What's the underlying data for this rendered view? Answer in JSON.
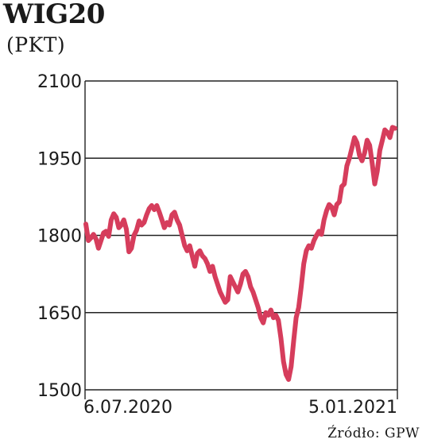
{
  "chart_data": {
    "type": "line",
    "title": "WIG20",
    "subtitle": "(PKT)",
    "ylim": [
      1500,
      2100
    ],
    "yticks": [
      {
        "value": 2100,
        "label": "2100"
      },
      {
        "value": 1950,
        "label": "1950"
      },
      {
        "value": 1800,
        "label": "1800"
      },
      {
        "value": 1650,
        "label": "1650"
      },
      {
        "value": 1500,
        "label": "1500"
      }
    ],
    "xtick_labels": [
      "6.07.2020",
      "5.01.2021"
    ],
    "grid": true,
    "line_color": "#d63d5c",
    "series": [
      {
        "values": [
          1822,
          1790,
          1795,
          1802,
          1793,
          1775,
          1790,
          1805,
          1808,
          1798,
          1830,
          1842,
          1835,
          1815,
          1820,
          1830,
          1812,
          1768,
          1775,
          1800,
          1810,
          1828,
          1820,
          1825,
          1840,
          1852,
          1858,
          1850,
          1858,
          1845,
          1830,
          1815,
          1825,
          1820,
          1840,
          1845,
          1830,
          1820,
          1800,
          1780,
          1770,
          1780,
          1760,
          1740,
          1765,
          1770,
          1760,
          1755,
          1745,
          1730,
          1740,
          1720,
          1705,
          1690,
          1680,
          1670,
          1675,
          1720,
          1710,
          1700,
          1690,
          1705,
          1725,
          1730,
          1720,
          1700,
          1690,
          1675,
          1660,
          1640,
          1630,
          1650,
          1645,
          1655,
          1640,
          1645,
          1635,
          1600,
          1555,
          1530,
          1520,
          1545,
          1595,
          1640,
          1660,
          1700,
          1745,
          1770,
          1780,
          1775,
          1790,
          1800,
          1808,
          1802,
          1830,
          1848,
          1860,
          1855,
          1840,
          1860,
          1865,
          1895,
          1900,
          1935,
          1950,
          1970,
          1990,
          1980,
          1955,
          1945,
          1960,
          1985,
          1975,
          1940,
          1900,
          1925,
          1965,
          1985,
          2005,
          2000,
          1990,
          2010,
          2008
        ]
      }
    ]
  },
  "source_text": "Źródło: GPW"
}
